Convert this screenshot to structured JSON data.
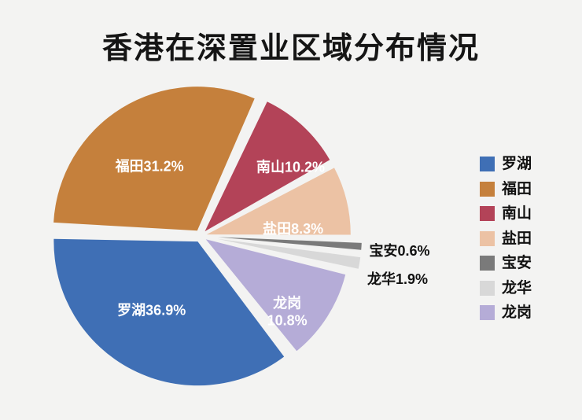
{
  "page": {
    "background": "#f3f3f2"
  },
  "chart_data": {
    "type": "pie",
    "title": "香港在深置业区域分布情况",
    "legend_position": "right",
    "slices": [
      {
        "name": "罗湖",
        "value": 36.9,
        "label": "罗湖36.9%",
        "color": "#3f6fb5",
        "label_color": "#ffffff",
        "label_placement": "inside"
      },
      {
        "name": "福田",
        "value": 31.2,
        "label": "福田31.2%",
        "color": "#c5803c",
        "label_color": "#ffffff",
        "label_placement": "inside"
      },
      {
        "name": "南山",
        "value": 10.2,
        "label": "南山10.2%",
        "color": "#b34358",
        "label_color": "#ffffff",
        "label_placement": "inside"
      },
      {
        "name": "盐田",
        "value": 8.3,
        "label": "盐田8.3%",
        "color": "#ecc2a4",
        "label_color": "#ffffff",
        "label_placement": "inside"
      },
      {
        "name": "宝安",
        "value": 0.6,
        "label": "宝安0.6%",
        "color": "#7a7a7a",
        "label_color": "#111111",
        "label_placement": "outside"
      },
      {
        "name": "龙华",
        "value": 1.9,
        "label": "龙华1.9%",
        "color": "#d8d8d8",
        "label_color": "#111111",
        "label_placement": "outside"
      },
      {
        "name": "龙岗",
        "value": 10.8,
        "label": "龙岗\n10.8%",
        "color": "#b5acd7",
        "label_color": "#ffffff",
        "label_placement": "inside"
      }
    ]
  }
}
